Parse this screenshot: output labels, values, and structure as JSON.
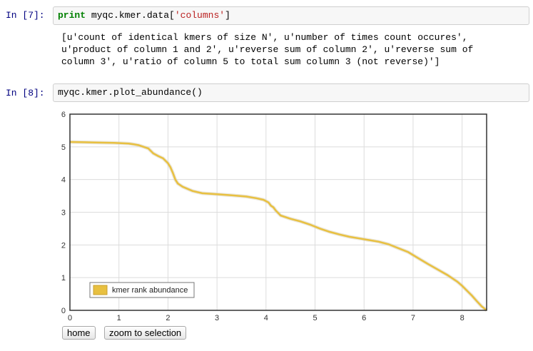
{
  "cells": [
    {
      "prompt": "In [7]:",
      "code": {
        "keyword": "print",
        "pre": " myqc.kmer.data[",
        "string": "'columns'",
        "post": "]"
      },
      "output_lines": [
        "[u'count of identical kmers of size N', u'number of times count occures',",
        "u'product of column 1 and 2', u'reverse sum of column 2', u'reverse sum of",
        "column 3', u'ratio of column 5 to total sum column 3 (not reverse)']"
      ]
    },
    {
      "prompt": "In [8]:",
      "code_text": "myqc.kmer.plot_abundance()"
    }
  ],
  "buttons": {
    "home": "home",
    "zoom": "zoom to selection"
  },
  "colors": {
    "line": "#e8c040",
    "prompt": "#000080",
    "keyword": "#008000",
    "string": "#ba2121"
  },
  "chart_data": {
    "type": "line",
    "xlim": [
      0,
      8.5
    ],
    "ylim": [
      0,
      6
    ],
    "x_ticks": [
      "0",
      "1",
      "2",
      "3",
      "4",
      "5",
      "6",
      "7",
      "8"
    ],
    "y_ticks": [
      "0",
      "1",
      "2",
      "3",
      "4",
      "5",
      "6"
    ],
    "grid": true,
    "legend_position": "bottom-left",
    "series": [
      {
        "name": "kmer rank abundance",
        "x": [
          0,
          0.3,
          0.6,
          0.9,
          1.2,
          1.3,
          1.4,
          1.5,
          1.6,
          1.7,
          1.8,
          1.9,
          2.0,
          2.05,
          2.1,
          2.15,
          2.2,
          2.3,
          2.5,
          2.7,
          3.0,
          3.3,
          3.6,
          3.8,
          3.95,
          4.05,
          4.1,
          4.15,
          4.2,
          4.3,
          4.5,
          4.7,
          4.9,
          5.1,
          5.3,
          5.5,
          5.7,
          5.9,
          6.1,
          6.3,
          6.5,
          6.7,
          6.9,
          7.1,
          7.3,
          7.5,
          7.7,
          7.9,
          8.0,
          8.1,
          8.2,
          8.3,
          8.4,
          8.5
        ],
        "y": [
          5.15,
          5.14,
          5.13,
          5.12,
          5.1,
          5.08,
          5.05,
          5.0,
          4.95,
          4.8,
          4.72,
          4.65,
          4.5,
          4.38,
          4.2,
          4.0,
          3.88,
          3.78,
          3.65,
          3.58,
          3.55,
          3.52,
          3.48,
          3.43,
          3.38,
          3.3,
          3.2,
          3.15,
          3.05,
          2.9,
          2.8,
          2.72,
          2.62,
          2.5,
          2.4,
          2.32,
          2.25,
          2.2,
          2.15,
          2.1,
          2.02,
          1.9,
          1.78,
          1.6,
          1.42,
          1.25,
          1.08,
          0.88,
          0.75,
          0.6,
          0.45,
          0.28,
          0.12,
          0.0
        ]
      }
    ]
  }
}
